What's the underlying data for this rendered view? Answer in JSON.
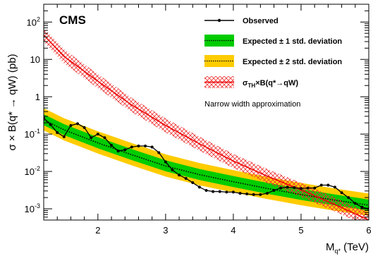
{
  "chart_data": {
    "type": "line",
    "experiment_label": "CMS",
    "xlabel": {
      "main": "M",
      "sub": "q*",
      "unit": " (TeV)"
    },
    "ylabel": "σ × B(q* → qW) (pb)",
    "x_range": [
      1.2,
      6.0
    ],
    "y_range": [
      0.0005,
      300
    ],
    "y_scale": "log",
    "x_ticks": [
      "2",
      "3",
      "4",
      "5",
      "6"
    ],
    "y_ticks": [
      {
        "base": "10",
        "exp": "-3"
      },
      {
        "base": "10",
        "exp": "-2"
      },
      {
        "base": "10",
        "exp": "-1"
      },
      {
        "base": "1",
        "exp": ""
      },
      {
        "base": "10",
        "exp": ""
      },
      {
        "base": "10",
        "exp": "2"
      }
    ],
    "legend_position": "top-right",
    "legend": [
      {
        "id": "observed",
        "label": "Observed"
      },
      {
        "id": "exp1",
        "label": "Expected ± 1 std. deviation"
      },
      {
        "id": "exp2",
        "label": "Expected ± 2 std. deviation"
      },
      {
        "id": "theory",
        "label_main": "σ",
        "label_sub": "TH",
        "label_rest": "×B(q*→qW)"
      },
      {
        "id": "note",
        "label": "Narrow width approximation"
      }
    ],
    "colors": {
      "observed": "#000000",
      "expected": "#000000",
      "band1": "#00cc00",
      "band2": "#ffcc00",
      "theory": "#ee0000",
      "theory_band": "#ee4444"
    },
    "series": [
      {
        "name": "Observed",
        "x": [
          1.2,
          1.3,
          1.4,
          1.5,
          1.6,
          1.7,
          1.8,
          1.9,
          2.0,
          2.1,
          2.2,
          2.3,
          2.4,
          2.5,
          2.6,
          2.7,
          2.8,
          2.9,
          3.0,
          3.1,
          3.2,
          3.3,
          3.4,
          3.5,
          3.6,
          3.7,
          3.8,
          3.9,
          4.0,
          4.1,
          4.2,
          4.3,
          4.4,
          4.5,
          4.6,
          4.7,
          4.8,
          4.9,
          5.0,
          5.1,
          5.2,
          5.3,
          5.4,
          5.5,
          5.6,
          5.7,
          5.8,
          5.9,
          6.0
        ],
        "y": [
          0.27,
          0.18,
          0.11,
          0.085,
          0.17,
          0.19,
          0.15,
          0.08,
          0.1,
          0.08,
          0.05,
          0.035,
          0.038,
          0.045,
          0.048,
          0.048,
          0.045,
          0.032,
          0.018,
          0.011,
          0.008,
          0.0065,
          0.005,
          0.0038,
          0.0031,
          0.0029,
          0.0029,
          0.0028,
          0.0028,
          0.0026,
          0.0025,
          0.0024,
          0.0024,
          0.0026,
          0.0031,
          0.0036,
          0.0038,
          0.0037,
          0.0035,
          0.0036,
          0.0036,
          0.0043,
          0.0043,
          0.0038,
          0.0027,
          0.002,
          0.0014,
          0.0011,
          0.001
        ]
      },
      {
        "name": "Expected",
        "x": [
          1.2,
          1.5,
          2.0,
          2.5,
          3.0,
          3.5,
          4.0,
          4.5,
          5.0,
          5.5,
          6.0
        ],
        "y": [
          0.24,
          0.13,
          0.058,
          0.028,
          0.014,
          0.0082,
          0.0053,
          0.0035,
          0.0024,
          0.0017,
          0.00125
        ]
      },
      {
        "name": "σTH×B(q*→qW)",
        "x": [
          1.2,
          1.5,
          2.0,
          2.5,
          3.0,
          3.5,
          4.0,
          4.5,
          5.0,
          5.5,
          6.0
        ],
        "y": [
          45,
          12,
          2.6,
          0.6,
          0.17,
          0.055,
          0.019,
          0.0075,
          0.0032,
          0.0013,
          0.0005
        ]
      }
    ],
    "bands": {
      "one_sigma": {
        "low_factor": 0.72,
        "high_factor": 1.42
      },
      "two_sigma": {
        "low_factor": 0.52,
        "high_factor": 2.05
      },
      "theory": {
        "low_factor": 0.65,
        "high_factor": 1.55
      }
    }
  }
}
